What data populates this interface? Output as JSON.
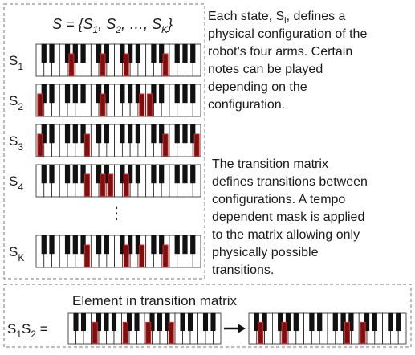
{
  "set_definition": {
    "parts": [
      "S = {S",
      "1",
      ", S",
      "2",
      ", …, S",
      "K",
      "}"
    ]
  },
  "states": [
    {
      "name": "S",
      "sub": "1"
    },
    {
      "name": "S",
      "sub": "2"
    },
    {
      "name": "S",
      "sub": "3"
    },
    {
      "name": "S",
      "sub": "4"
    },
    {
      "name": "S",
      "sub": "K"
    }
  ],
  "ellipsis": "⋮",
  "state_description": {
    "first_line": {
      "before": "Each state, S",
      "sub": "i",
      "after": ", defines a"
    },
    "lines": [
      "physical configuration of the",
      "robot’s four arms. Certain",
      "notes can be played",
      "depending on the",
      "configuration."
    ]
  },
  "transition_description": {
    "lines": [
      "The transition matrix",
      "defines transitions between",
      "configurations. A tempo",
      "dependent mask is applied",
      "to the matrix allowing only",
      "physically  possible",
      "transitions."
    ]
  },
  "element": {
    "title": "Element in transition matrix",
    "equation": {
      "parts": [
        "S",
        "1",
        "S",
        "2",
        " ="
      ]
    }
  }
}
